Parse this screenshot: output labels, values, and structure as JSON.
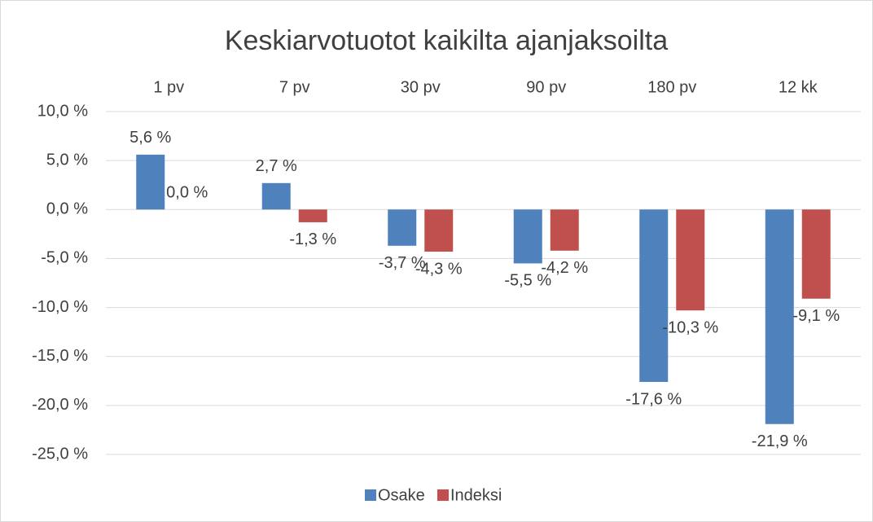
{
  "chart_data": {
    "type": "bar",
    "title": "Keskiarvotuotot kaikilta ajanjaksoilta",
    "categories": [
      "1 pv",
      "7 pv",
      "30 pv",
      "90 pv",
      "180 pv",
      "12 kk"
    ],
    "series": [
      {
        "name": "Osake",
        "color": "#4f81bd",
        "values": [
          5.6,
          2.7,
          -3.7,
          -5.5,
          -17.6,
          -21.9
        ],
        "value_labels": [
          "5,6 %",
          "2,7 %",
          "-3,7 %",
          "-5,5 %",
          "-17,6 %",
          "-21,9 %"
        ]
      },
      {
        "name": "Indeksi",
        "color": "#c0504d",
        "values": [
          0.0,
          -1.3,
          -4.3,
          -4.2,
          -10.3,
          -9.1
        ],
        "value_labels": [
          "0,0 %",
          "-1,3 %",
          "-4,3 %",
          "-4,2 %",
          "-10,3 %",
          "-9,1 %"
        ]
      }
    ],
    "ylim": [
      -25,
      10
    ],
    "yticks": [
      {
        "value": 10,
        "label": "10,0 %"
      },
      {
        "value": 5,
        "label": "5,0 %"
      },
      {
        "value": 0,
        "label": "0,0 %"
      },
      {
        "value": -5,
        "label": "-5,0 %"
      },
      {
        "value": -10,
        "label": "-10,0 %"
      },
      {
        "value": -15,
        "label": "-15,0 %"
      },
      {
        "value": -20,
        "label": "-20,0 %"
      },
      {
        "value": -25,
        "label": "-25,0 %"
      }
    ],
    "grid": true,
    "legend": "bottom"
  }
}
